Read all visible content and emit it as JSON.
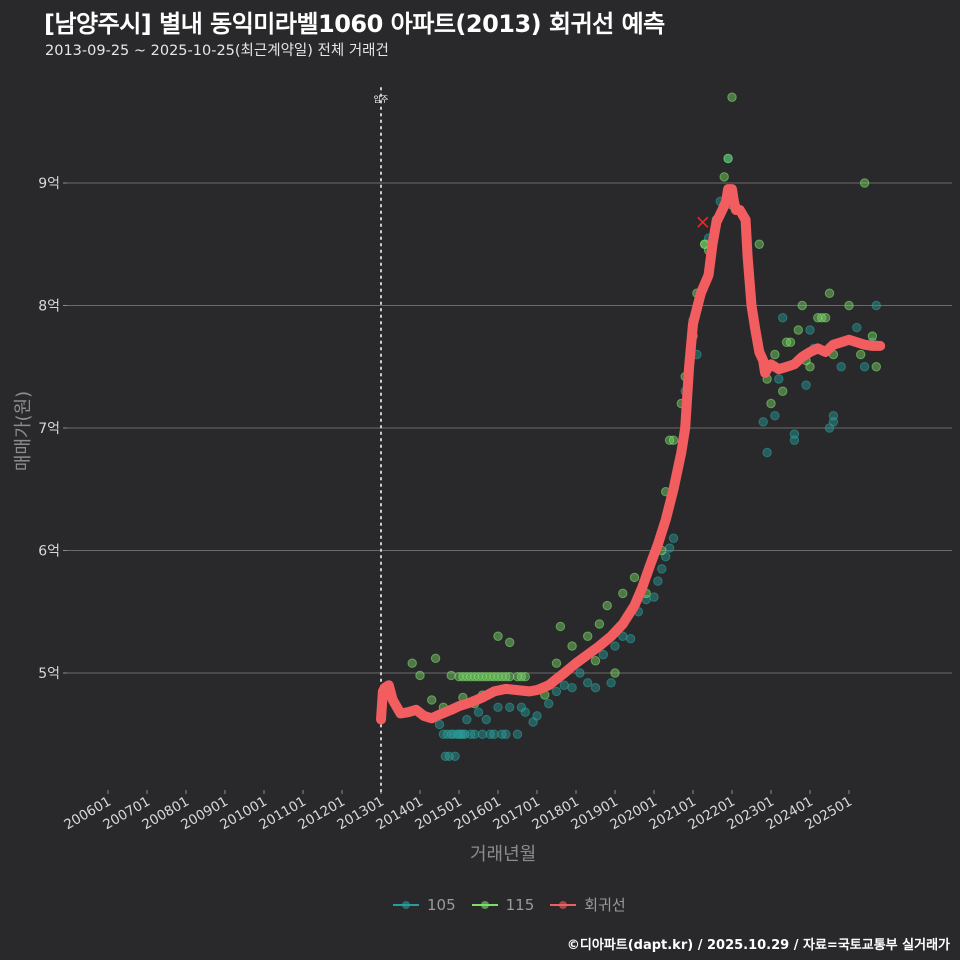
{
  "header": {
    "title": "[남양주시] 별내 동익미라벨1060 아파트(2013) 회귀선 예측",
    "subtitle": "2013-09-25 ~ 2025-10-25(최근계약일) 전체 거래건"
  },
  "axes": {
    "xlabel": "거래년월",
    "ylabel": "매매가(원)"
  },
  "legend": [
    {
      "label": "105",
      "color": "#2a9d9a"
    },
    {
      "label": "115",
      "color": "#7ddc6a"
    },
    {
      "label": "회귀선",
      "color": "#f25d5f"
    }
  ],
  "annotation": {
    "label": "입주",
    "x": 2013.0
  },
  "caption": "©디아파트(dapt.kr) / 2025.10.29 / 자료=국토교통부 실거래가",
  "colors": {
    "background": "#29292b",
    "grid": "#6a6a6a",
    "series_105": "#2a9d9a",
    "series_115": "#7ddc6a",
    "regression": "#f25d5f"
  },
  "chart_data": {
    "type": "scatter",
    "title": "[남양주시] 별내 동익미라벨1060 아파트(2013) 회귀선 예측",
    "subtitle": "2013-09-25 ~ 2025-10-25(최근계약일) 전체 거래건",
    "xlabel": "거래년월",
    "ylabel": "매매가(원)",
    "x_ticks": [
      "200601",
      "200701",
      "200801",
      "200901",
      "201001",
      "201101",
      "201201",
      "201301",
      "201401",
      "201501",
      "201601",
      "201701",
      "201801",
      "201901",
      "202001",
      "202101",
      "202201",
      "202301",
      "202401",
      "202501"
    ],
    "y_ticks": [
      "5억",
      "6억",
      "7억",
      "8억",
      "9억"
    ],
    "y_tick_values": [
      5,
      6,
      7,
      8,
      9
    ],
    "xlim": [
      2005.4,
      2027.0
    ],
    "ylim": [
      4.1,
      9.9
    ],
    "grid": true,
    "legend_position": "bottom",
    "unit": "억원",
    "series": [
      {
        "name": "105",
        "points": [
          [
            2014.5,
            4.58
          ],
          [
            2014.6,
            4.5
          ],
          [
            2014.65,
            4.32
          ],
          [
            2014.7,
            4.5
          ],
          [
            2014.75,
            4.32
          ],
          [
            2014.8,
            4.5
          ],
          [
            2014.85,
            4.5
          ],
          [
            2014.9,
            4.32
          ],
          [
            2014.95,
            4.5
          ],
          [
            2015.0,
            4.5
          ],
          [
            2015.05,
            4.5
          ],
          [
            2015.1,
            4.5
          ],
          [
            2015.15,
            4.5
          ],
          [
            2015.2,
            4.62
          ],
          [
            2015.3,
            4.5
          ],
          [
            2015.4,
            4.5
          ],
          [
            2015.5,
            4.68
          ],
          [
            2015.6,
            4.5
          ],
          [
            2015.7,
            4.62
          ],
          [
            2015.8,
            4.5
          ],
          [
            2015.9,
            4.5
          ],
          [
            2016.0,
            4.72
          ],
          [
            2016.1,
            4.5
          ],
          [
            2016.2,
            4.5
          ],
          [
            2016.3,
            4.72
          ],
          [
            2016.5,
            4.5
          ],
          [
            2016.6,
            4.72
          ],
          [
            2016.7,
            4.68
          ],
          [
            2016.9,
            4.6
          ],
          [
            2017.0,
            4.65
          ],
          [
            2017.3,
            4.75
          ],
          [
            2017.5,
            4.85
          ],
          [
            2017.7,
            4.9
          ],
          [
            2017.9,
            4.88
          ],
          [
            2018.1,
            5.0
          ],
          [
            2018.3,
            4.92
          ],
          [
            2018.5,
            4.88
          ],
          [
            2018.7,
            5.15
          ],
          [
            2018.9,
            4.92
          ],
          [
            2019.0,
            5.22
          ],
          [
            2019.2,
            5.3
          ],
          [
            2019.4,
            5.28
          ],
          [
            2019.6,
            5.5
          ],
          [
            2019.8,
            5.6
          ],
          [
            2020.0,
            5.62
          ],
          [
            2020.1,
            5.75
          ],
          [
            2020.2,
            5.85
          ],
          [
            2020.3,
            5.95
          ],
          [
            2020.4,
            6.02
          ],
          [
            2020.5,
            6.1
          ],
          [
            2020.8,
            7.3
          ],
          [
            2021.0,
            7.88
          ],
          [
            2021.1,
            7.6
          ],
          [
            2021.4,
            8.55
          ],
          [
            2021.7,
            8.85
          ],
          [
            2021.9,
            9.2
          ],
          [
            2022.8,
            7.05
          ],
          [
            2022.9,
            6.8
          ],
          [
            2023.1,
            7.1
          ],
          [
            2023.2,
            7.4
          ],
          [
            2023.3,
            7.9
          ],
          [
            2023.6,
            6.9
          ],
          [
            2023.6,
            6.95
          ],
          [
            2023.9,
            7.35
          ],
          [
            2024.0,
            7.8
          ],
          [
            2024.1,
            7.65
          ],
          [
            2024.5,
            7.0
          ],
          [
            2024.6,
            7.1
          ],
          [
            2024.6,
            7.05
          ],
          [
            2024.8,
            7.5
          ],
          [
            2025.0,
            7.72
          ],
          [
            2025.2,
            7.82
          ],
          [
            2025.4,
            7.5
          ],
          [
            2025.6,
            7.7
          ],
          [
            2025.7,
            8.0
          ]
        ]
      },
      {
        "name": "115",
        "points": [
          [
            2013.8,
            5.08
          ],
          [
            2014.0,
            4.98
          ],
          [
            2014.3,
            4.78
          ],
          [
            2014.4,
            5.12
          ],
          [
            2014.6,
            4.72
          ],
          [
            2014.8,
            4.98
          ],
          [
            2015.0,
            4.97
          ],
          [
            2015.1,
            4.97
          ],
          [
            2015.2,
            4.97
          ],
          [
            2015.3,
            4.97
          ],
          [
            2015.4,
            4.97
          ],
          [
            2015.5,
            4.97
          ],
          [
            2015.6,
            4.97
          ],
          [
            2015.7,
            4.97
          ],
          [
            2015.8,
            4.97
          ],
          [
            2015.9,
            4.97
          ],
          [
            2016.0,
            4.97
          ],
          [
            2016.1,
            4.97
          ],
          [
            2016.2,
            4.97
          ],
          [
            2016.3,
            4.97
          ],
          [
            2016.5,
            4.97
          ],
          [
            2016.6,
            4.97
          ],
          [
            2016.7,
            4.97
          ],
          [
            2015.1,
            4.8
          ],
          [
            2015.4,
            4.75
          ],
          [
            2015.6,
            4.82
          ],
          [
            2016.0,
            5.3
          ],
          [
            2016.3,
            5.25
          ],
          [
            2017.2,
            4.82
          ],
          [
            2017.5,
            5.08
          ],
          [
            2017.6,
            5.38
          ],
          [
            2017.9,
            5.22
          ],
          [
            2018.3,
            5.3
          ],
          [
            2018.5,
            5.1
          ],
          [
            2018.6,
            5.4
          ],
          [
            2018.8,
            5.55
          ],
          [
            2019.0,
            5.0
          ],
          [
            2019.2,
            5.65
          ],
          [
            2019.5,
            5.78
          ],
          [
            2019.8,
            5.65
          ],
          [
            2020.2,
            6.0
          ],
          [
            2020.3,
            6.48
          ],
          [
            2020.4,
            6.9
          ],
          [
            2020.5,
            6.9
          ],
          [
            2020.7,
            7.2
          ],
          [
            2020.8,
            7.42
          ],
          [
            2020.9,
            7.5
          ],
          [
            2021.0,
            7.75
          ],
          [
            2021.1,
            8.1
          ],
          [
            2021.3,
            8.5
          ],
          [
            2021.3,
            8.5
          ],
          [
            2021.4,
            8.45
          ],
          [
            2021.6,
            8.7
          ],
          [
            2021.8,
            9.05
          ],
          [
            2021.9,
            9.2
          ],
          [
            2022.0,
            8.82
          ],
          [
            2022.0,
            9.7
          ],
          [
            2022.7,
            8.5
          ],
          [
            2022.9,
            7.4
          ],
          [
            2023.0,
            7.2
          ],
          [
            2023.1,
            7.6
          ],
          [
            2023.3,
            7.3
          ],
          [
            2023.4,
            7.7
          ],
          [
            2023.5,
            7.7
          ],
          [
            2023.7,
            7.8
          ],
          [
            2023.8,
            8.0
          ],
          [
            2023.9,
            7.55
          ],
          [
            2024.0,
            7.5
          ],
          [
            2024.2,
            7.9
          ],
          [
            2024.3,
            7.9
          ],
          [
            2024.4,
            7.9
          ],
          [
            2024.5,
            8.1
          ],
          [
            2024.6,
            7.6
          ],
          [
            2025.0,
            8.0
          ],
          [
            2025.3,
            7.6
          ],
          [
            2025.4,
            9.0
          ],
          [
            2025.6,
            7.75
          ],
          [
            2025.7,
            7.5
          ]
        ]
      },
      {
        "name": "회귀선",
        "points": [
          [
            2013.0,
            4.62
          ],
          [
            2013.05,
            4.85
          ],
          [
            2013.1,
            4.88
          ],
          [
            2013.2,
            4.9
          ],
          [
            2013.3,
            4.78
          ],
          [
            2013.5,
            4.67
          ],
          [
            2013.7,
            4.68
          ],
          [
            2013.9,
            4.7
          ],
          [
            2014.1,
            4.65
          ],
          [
            2014.3,
            4.63
          ],
          [
            2014.5,
            4.66
          ],
          [
            2014.8,
            4.7
          ],
          [
            2015.0,
            4.73
          ],
          [
            2015.3,
            4.76
          ],
          [
            2015.6,
            4.8
          ],
          [
            2015.9,
            4.85
          ],
          [
            2016.2,
            4.87
          ],
          [
            2016.5,
            4.86
          ],
          [
            2016.8,
            4.85
          ],
          [
            2017.0,
            4.86
          ],
          [
            2017.3,
            4.9
          ],
          [
            2017.5,
            4.95
          ],
          [
            2017.7,
            5.0
          ],
          [
            2018.0,
            5.08
          ],
          [
            2018.3,
            5.15
          ],
          [
            2018.6,
            5.22
          ],
          [
            2018.9,
            5.3
          ],
          [
            2019.2,
            5.4
          ],
          [
            2019.5,
            5.55
          ],
          [
            2019.7,
            5.7
          ],
          [
            2019.9,
            5.88
          ],
          [
            2020.1,
            6.05
          ],
          [
            2020.3,
            6.25
          ],
          [
            2020.5,
            6.5
          ],
          [
            2020.7,
            6.8
          ],
          [
            2020.8,
            7.0
          ],
          [
            2020.9,
            7.5
          ],
          [
            2021.0,
            7.85
          ],
          [
            2021.2,
            8.1
          ],
          [
            2021.4,
            8.25
          ],
          [
            2021.5,
            8.5
          ],
          [
            2021.6,
            8.68
          ],
          [
            2021.75,
            8.78
          ],
          [
            2021.85,
            8.85
          ],
          [
            2021.9,
            8.95
          ],
          [
            2022.0,
            8.95
          ],
          [
            2022.05,
            8.85
          ],
          [
            2022.1,
            8.78
          ],
          [
            2022.2,
            8.78
          ],
          [
            2022.35,
            8.7
          ],
          [
            2022.4,
            8.4
          ],
          [
            2022.5,
            8.0
          ],
          [
            2022.6,
            7.8
          ],
          [
            2022.7,
            7.62
          ],
          [
            2022.8,
            7.55
          ],
          [
            2022.85,
            7.45
          ],
          [
            2022.9,
            7.48
          ],
          [
            2023.0,
            7.52
          ],
          [
            2023.2,
            7.48
          ],
          [
            2023.4,
            7.5
          ],
          [
            2023.6,
            7.52
          ],
          [
            2023.8,
            7.58
          ],
          [
            2024.0,
            7.62
          ],
          [
            2024.2,
            7.65
          ],
          [
            2024.4,
            7.62
          ],
          [
            2024.6,
            7.68
          ],
          [
            2024.8,
            7.7
          ],
          [
            2025.0,
            7.72
          ],
          [
            2025.2,
            7.7
          ],
          [
            2025.4,
            7.68
          ],
          [
            2025.6,
            7.67
          ],
          [
            2025.8,
            7.67
          ]
        ]
      }
    ],
    "annotations": [
      {
        "type": "vline",
        "x": 2013.0,
        "label": "입주",
        "style": "dotted"
      },
      {
        "type": "marker",
        "x": 2021.25,
        "y": 8.68,
        "label": "x",
        "color": "#ff2222"
      }
    ]
  }
}
